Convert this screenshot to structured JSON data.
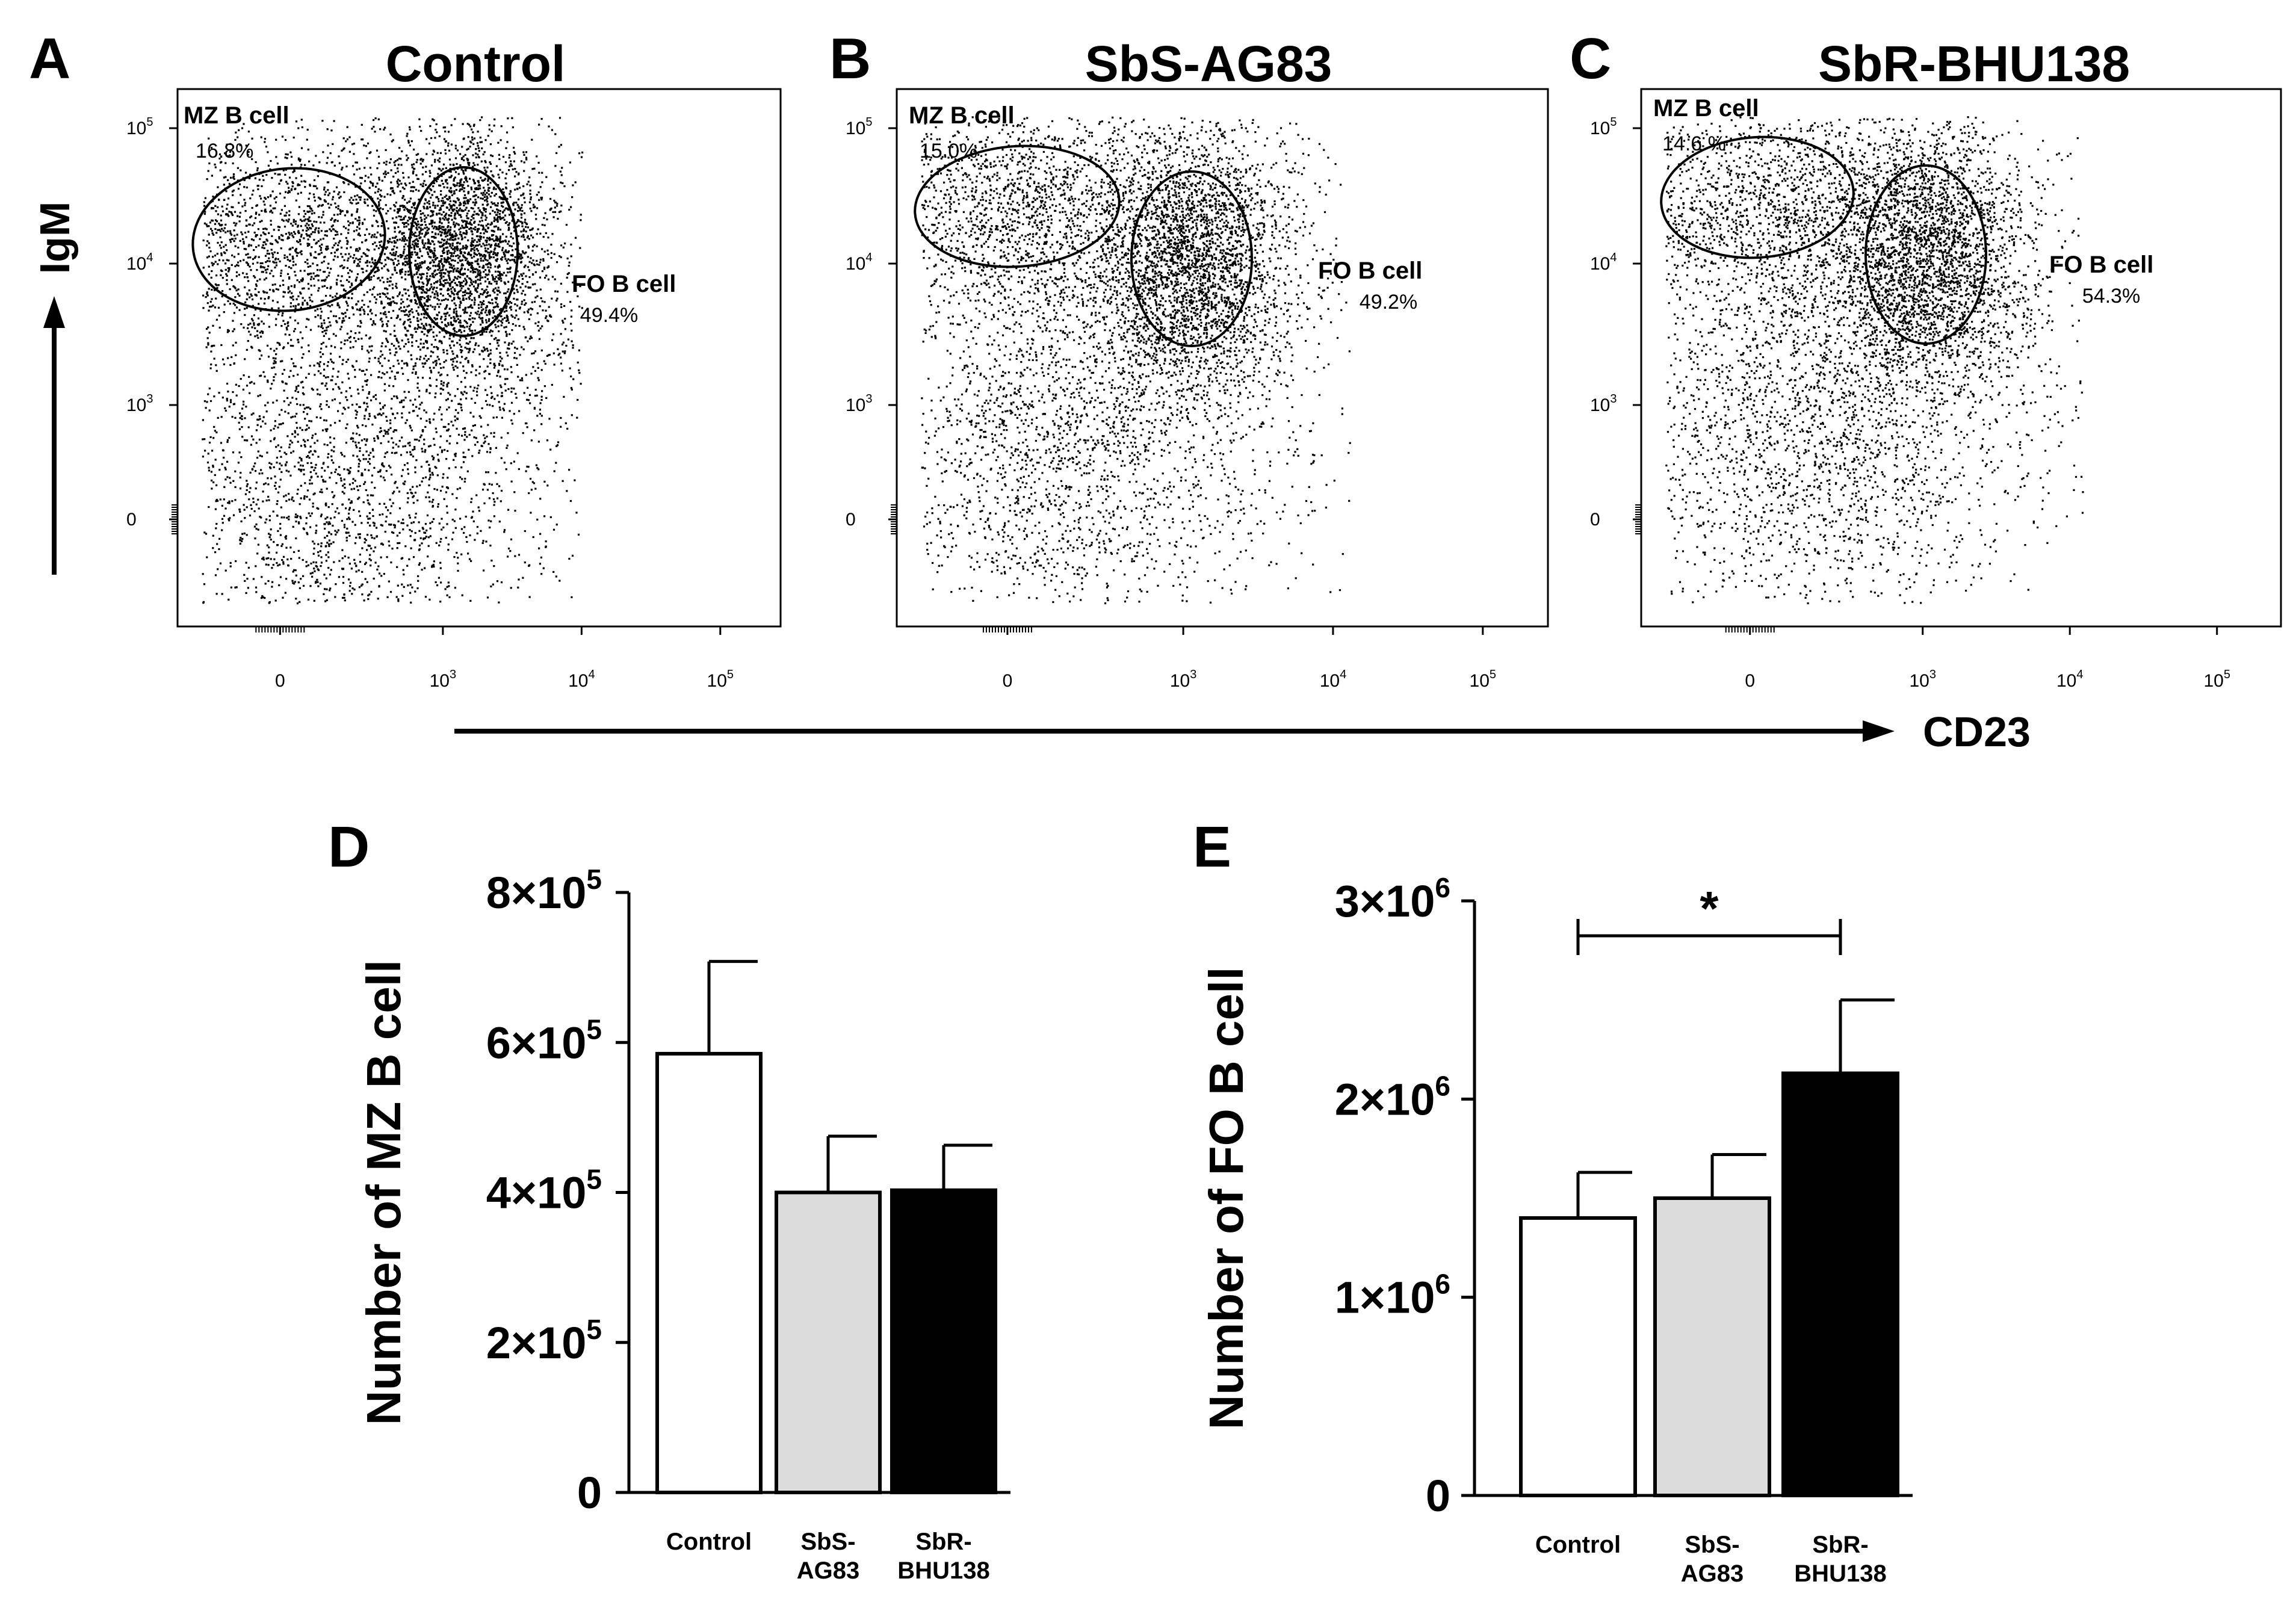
{
  "chart_data": [
    {
      "type": "scatter",
      "panel": "A",
      "title": "Control",
      "xlabel": "CD23",
      "ylabel": "IgM",
      "x_ticks": [
        {
          "base": "0",
          "exp": ""
        },
        {
          "base": "10",
          "exp": "3"
        },
        {
          "base": "10",
          "exp": "4"
        },
        {
          "base": "10",
          "exp": "5"
        }
      ],
      "y_ticks": [
        {
          "base": "0",
          "exp": ""
        },
        {
          "base": "10",
          "exp": "3"
        },
        {
          "base": "10",
          "exp": "4"
        },
        {
          "base": "10",
          "exp": "5"
        }
      ],
      "gates": [
        {
          "name": "MZ B cell",
          "percent": "16.8%"
        },
        {
          "name": "FO B cell",
          "percent": "49.4%"
        }
      ]
    },
    {
      "type": "scatter",
      "panel": "B",
      "title": "SbS-AG83",
      "xlabel": "CD23",
      "ylabel": "IgM",
      "x_ticks": [
        {
          "base": "0",
          "exp": ""
        },
        {
          "base": "10",
          "exp": "3"
        },
        {
          "base": "10",
          "exp": "4"
        },
        {
          "base": "10",
          "exp": "5"
        }
      ],
      "y_ticks": [
        {
          "base": "0",
          "exp": ""
        },
        {
          "base": "10",
          "exp": "3"
        },
        {
          "base": "10",
          "exp": "4"
        },
        {
          "base": "10",
          "exp": "5"
        }
      ],
      "gates": [
        {
          "name": "MZ B cell",
          "percent": "15.0%"
        },
        {
          "name": "FO B cell",
          "percent": "49.2%"
        }
      ]
    },
    {
      "type": "scatter",
      "panel": "C",
      "title": "SbR-BHU138",
      "xlabel": "CD23",
      "ylabel": "IgM",
      "x_ticks": [
        {
          "base": "0",
          "exp": ""
        },
        {
          "base": "10",
          "exp": "3"
        },
        {
          "base": "10",
          "exp": "4"
        },
        {
          "base": "10",
          "exp": "5"
        }
      ],
      "y_ticks": [
        {
          "base": "0",
          "exp": ""
        },
        {
          "base": "10",
          "exp": "3"
        },
        {
          "base": "10",
          "exp": "4"
        },
        {
          "base": "10",
          "exp": "5"
        }
      ],
      "gates": [
        {
          "name": "MZ B cell",
          "percent": "14.6 %"
        },
        {
          "name": "FO B cell",
          "percent": "54.3%"
        }
      ]
    },
    {
      "type": "bar",
      "panel": "D",
      "title": "",
      "xlabel": "",
      "ylabel": "Number of MZ B cell",
      "ylim": [
        0,
        800000
      ],
      "y_ticks": [
        {
          "value": 0,
          "base": "0",
          "exp": ""
        },
        {
          "value": 200000,
          "base": "2×10",
          "exp": "5"
        },
        {
          "value": 400000,
          "base": "4×10",
          "exp": "5"
        },
        {
          "value": 600000,
          "base": "6×10",
          "exp": "5"
        },
        {
          "value": 800000,
          "base": "8×10",
          "exp": "5"
        }
      ],
      "categories": [
        [
          "Control"
        ],
        [
          "SbS-",
          "AG83"
        ],
        [
          "SbR-",
          "BHU138"
        ]
      ],
      "values": [
        585000,
        400000,
        403000
      ],
      "errors": [
        123000,
        75000,
        60000
      ],
      "fills": [
        "#ffffff",
        "#dcdcdc",
        "#000000"
      ],
      "significance": []
    },
    {
      "type": "bar",
      "panel": "E",
      "title": "",
      "xlabel": "",
      "ylabel": "Number of FO B cell",
      "ylim": [
        0,
        3000000
      ],
      "y_ticks": [
        {
          "value": 0,
          "base": "0",
          "exp": ""
        },
        {
          "value": 1000000,
          "base": "1×10",
          "exp": "6"
        },
        {
          "value": 2000000,
          "base": "2×10",
          "exp": "6"
        },
        {
          "value": 3000000,
          "base": "3×10",
          "exp": "6"
        }
      ],
      "categories": [
        [
          "Control"
        ],
        [
          "SbS-",
          "AG83"
        ],
        [
          "SbR-",
          "BHU138"
        ]
      ],
      "values": [
        1400000,
        1500000,
        2130000
      ],
      "errors": [
        230000,
        220000,
        370000
      ],
      "fills": [
        "#ffffff",
        "#dcdcdc",
        "#000000"
      ],
      "significance": [
        {
          "from": 0,
          "to": 2,
          "label": "*"
        }
      ]
    }
  ]
}
